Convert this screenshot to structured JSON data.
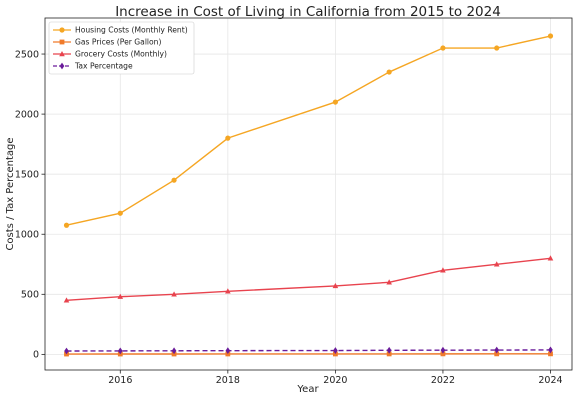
{
  "chart_data": {
    "type": "line",
    "title": "Increase in Cost of Living in California from 2015 to 2024",
    "xlabel": "Year",
    "ylabel": "Costs / Tax Percentage",
    "x": [
      2015,
      2016,
      2017,
      2018,
      2020,
      2021,
      2022,
      2023,
      2024
    ],
    "xlim": [
      2014.6,
      2024.4
    ],
    "ylim": [
      -130,
      2800
    ],
    "xticks": [
      2016,
      2018,
      2020,
      2022,
      2024
    ],
    "yticks": [
      0,
      500,
      1000,
      1500,
      2000,
      2500
    ],
    "grid": true,
    "legend_position": "top-left",
    "series": [
      {
        "name": "Housing Costs (Monthly Rent)",
        "color": "#f5a623",
        "marker": "circle",
        "dash": "solid",
        "values": [
          1075,
          1175,
          1450,
          1800,
          2100,
          2350,
          2550,
          2550,
          2650
        ]
      },
      {
        "name": "Gas Prices (Per Gallon)",
        "color": "#f07a2a",
        "marker": "square",
        "dash": "solid",
        "values": [
          3.0,
          3.1,
          3.2,
          3.5,
          3.6,
          3.9,
          4.3,
          4.5,
          4.6
        ]
      },
      {
        "name": "Grocery Costs (Monthly)",
        "color": "#e8434e",
        "marker": "triangle",
        "dash": "solid",
        "values": [
          450,
          480,
          500,
          525,
          570,
          600,
          700,
          750,
          800
        ]
      },
      {
        "name": "Tax Percentage",
        "color": "#6a1b9a",
        "marker": "diamond",
        "dash": "dashed",
        "values": [
          28,
          29,
          30,
          31,
          32,
          34,
          35,
          36,
          37
        ]
      }
    ]
  }
}
